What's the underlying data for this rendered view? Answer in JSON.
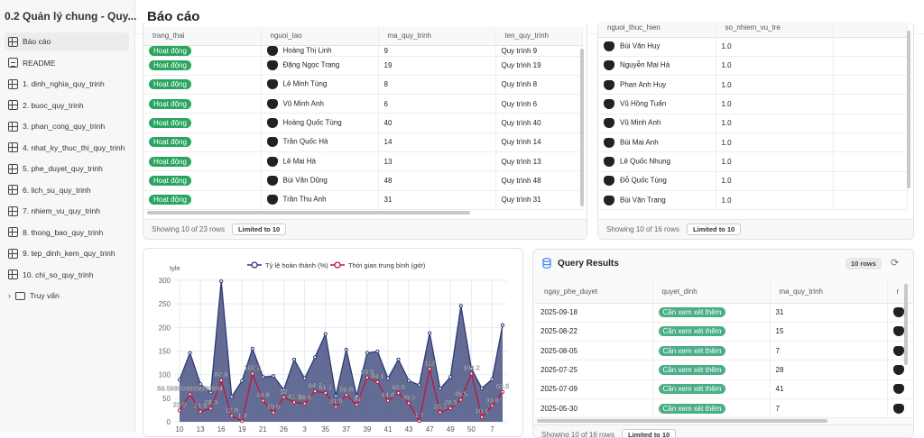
{
  "sidebar": {
    "title": "0.2 Quản lý chung - Quy...",
    "items": [
      {
        "label": "Báo cáo",
        "icon": "layout-icon"
      },
      {
        "label": "README",
        "icon": "document-icon"
      },
      {
        "label": "1. dinh_nghia_quy_trinh",
        "icon": "table-icon"
      },
      {
        "label": "2. buoc_quy_trinh",
        "icon": "table-icon"
      },
      {
        "label": "3. phan_cong_quy_trinh",
        "icon": "table-icon"
      },
      {
        "label": "4. nhat_ky_thuc_thi_quy_trinh",
        "icon": "table-icon"
      },
      {
        "label": "5. phe_duyet_quy_trinh",
        "icon": "table-icon"
      },
      {
        "label": "6. lich_su_quy_trinh",
        "icon": "table-icon"
      },
      {
        "label": "7. nhiem_vu_quy_trinh",
        "icon": "table-icon"
      },
      {
        "label": "8. thong_bao_quy_trinh",
        "icon": "table-icon"
      },
      {
        "label": "9. tep_dinh_kem_quy_trinh",
        "icon": "table-icon"
      },
      {
        "label": "10. chi_so_quy_trinh",
        "icon": "table-icon"
      },
      {
        "label": "Truy vấn",
        "icon": "folder-icon"
      }
    ]
  },
  "header": {
    "title": "Báo cáo"
  },
  "table1": {
    "columns": [
      "trang_thai",
      "nguoi_tao",
      "ma_quy_trinh",
      "ten_quy_trinh"
    ],
    "rows": [
      [
        "Hoạt động",
        "Hoàng Thị Linh",
        "9",
        "Quy trình 9"
      ],
      [
        "Hoạt động",
        "Đặng Ngọc Trang",
        "19",
        "Quy trình 19"
      ],
      [
        "Hoạt động",
        "Lê Minh Tùng",
        "8",
        "Quy trình 8"
      ],
      [
        "Hoạt động",
        "Vũ Minh Anh",
        "6",
        "Quy trình 6"
      ],
      [
        "Hoạt động",
        "Hoàng Quốc Tùng",
        "40",
        "Quy trình 40"
      ],
      [
        "Hoạt động",
        "Trần Quốc Hà",
        "14",
        "Quy trình 14"
      ],
      [
        "Hoạt động",
        "Lê Mai Hà",
        "13",
        "Quy trình 13"
      ],
      [
        "Hoạt động",
        "Bùi Văn Dũng",
        "48",
        "Quy trình 48"
      ],
      [
        "Hoạt động",
        "Trần Thu Anh",
        "31",
        "Quy trình 31"
      ]
    ],
    "footer": "Showing 10 of 23 rows",
    "limit": "Limited to 10"
  },
  "table2": {
    "columns": [
      "nguoi_thuc_hien",
      "so_nhiem_vu_tre",
      ""
    ],
    "rows": [
      [
        "Bùi Văn Huy",
        "1.0"
      ],
      [
        "Nguyễn Mai Hà",
        "1.0"
      ],
      [
        "Phan Anh Huy",
        "1.0"
      ],
      [
        "Vũ Hồng Tuấn",
        "1.0"
      ],
      [
        "Vũ Minh Anh",
        "1.0"
      ],
      [
        "Bùi Mai Anh",
        "1.0"
      ],
      [
        "Lê Quốc Nhung",
        "1.0"
      ],
      [
        "Đỗ Quốc Tùng",
        "1.0"
      ],
      [
        "Bùi Văn Trang",
        "1.0"
      ]
    ],
    "footer": "Showing 10 of 16 rows",
    "limit": "Limited to 10"
  },
  "query": {
    "title": "Query Results",
    "rows_badge": "10 rows",
    "columns": [
      "ngay_phe_duyet",
      "quyet_dinh",
      "ma_quy_trinh",
      "r"
    ],
    "rows": [
      [
        "2025-09-18",
        "Cần xem xét thêm",
        "31"
      ],
      [
        "2025-08-22",
        "Cần xem xét thêm",
        "15"
      ],
      [
        "2025-08-05",
        "Cần xem xét thêm",
        "7"
      ],
      [
        "2025-07-25",
        "Cần xem xét thêm",
        "28"
      ],
      [
        "2025-07-09",
        "Cần xem xét thêm",
        "41"
      ],
      [
        "2025-05-30",
        "Cần xem xét thêm",
        "7"
      ]
    ],
    "footer": "Showing 10 of 16 rows",
    "limit": "Limited to 10"
  },
  "chart_data": {
    "type": "line",
    "ylabel": "tyle",
    "ylim": [
      0,
      300
    ],
    "yticks": [
      0,
      50,
      100,
      150,
      200,
      250,
      300
    ],
    "grid": true,
    "legend": "top",
    "x": [
      "10",
      "",
      "13",
      "",
      "16",
      "",
      "19",
      "",
      "21",
      "",
      "26",
      "",
      "3",
      "",
      "35",
      "",
      "37",
      "",
      "39",
      "",
      "41",
      "",
      "43",
      "",
      "47",
      "",
      "49",
      "",
      "50",
      "",
      "7",
      ""
    ],
    "series": [
      {
        "name": "Tỷ lệ hoàn thành (%)",
        "color": "#2e3a73",
        "fill": "#4d5886",
        "values": [
          89,
          146,
          80,
          62,
          298,
          53,
          87,
          155,
          95,
          97,
          68,
          132,
          92,
          137,
          186,
          55,
          153,
          55,
          146,
          149,
          92,
          132,
          87,
          78,
          188,
          70,
          95,
          246,
          113,
          71,
          90,
          205
        ]
      },
      {
        "name": "Thời gian trung bình (giờ)",
        "color": "#c0143c",
        "values": [
          23.9,
          58.6,
          21.6,
          28.3,
          87.8,
          12.8,
          1.3,
          102.2,
          44.8,
          19.6,
          52,
          41.3,
          38.8,
          64.7,
          61.1,
          31.8,
          56.8,
          36,
          93.9,
          84.1,
          44.8,
          60.9,
          39.5,
          1.7,
          112,
          20.1,
          28.5,
          46.5,
          102.2,
          10.1,
          33.8,
          63.5
        ],
        "labels": [
          "23.9",
          "58.599999999999994",
          "21.6",
          "28.3",
          "87.8",
          "12.8",
          "1.3",
          "102.2",
          "44.8",
          "19.6",
          "52",
          "41.3",
          "38.8",
          "64.7",
          "61.1",
          "31.8",
          "56.8",
          "36",
          "93.9",
          "84.1",
          "44.8",
          "60.9",
          "39.5",
          "1.7",
          "112",
          "20.1",
          "28.5",
          "46.5",
          "102.2",
          "10.1",
          "33.8",
          "63.5"
        ]
      }
    ]
  }
}
